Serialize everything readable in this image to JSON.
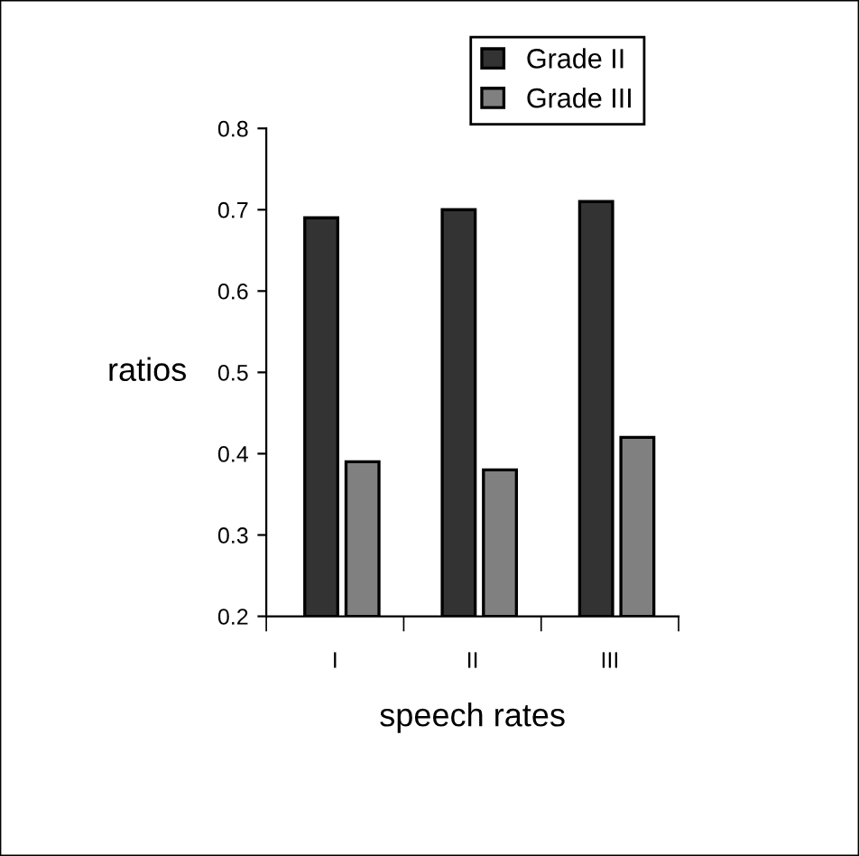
{
  "chart_data": {
    "type": "bar",
    "xlabel": "speech rates",
    "ylabel": "ratios",
    "categories": [
      "I",
      "II",
      "III"
    ],
    "series": [
      {
        "name": "Grade II",
        "color": "#333333",
        "values": [
          0.69,
          0.7,
          0.71
        ]
      },
      {
        "name": "Grade III",
        "color": "#808080",
        "values": [
          0.39,
          0.38,
          0.42
        ]
      }
    ],
    "ylim": [
      0.2,
      0.8
    ],
    "yticks": [
      0.2,
      0.3,
      0.4,
      0.5,
      0.6,
      0.7,
      0.8
    ],
    "grid": false,
    "legend": "top right"
  }
}
